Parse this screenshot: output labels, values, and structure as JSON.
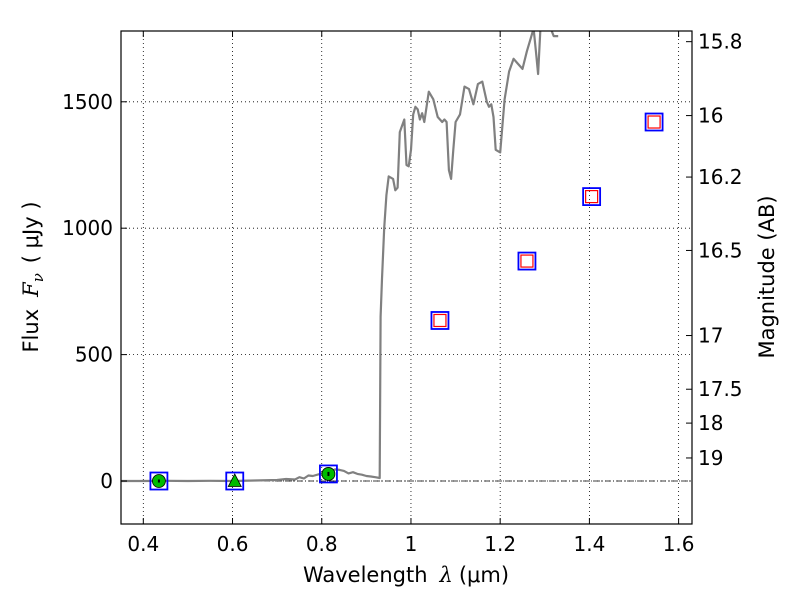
{
  "chart_data": {
    "type": "scatter",
    "xlabel": "Wavelength",
    "xlabel_symbol": "λ",
    "xlabel_unit": "(μm)",
    "ylabel": "Flux",
    "ylabel_symbol": "F",
    "ylabel_subscript": "ν",
    "ylabel_unit": "( μJy )",
    "y2label": "Magnitude (AB)",
    "xlim": [
      0.35,
      1.63
    ],
    "ylim": [
      -170,
      1780
    ],
    "xticks": [
      0.4,
      0.6,
      0.8,
      1.0,
      1.2,
      1.4,
      1.6
    ],
    "xtick_labels": [
      "0.4",
      "0.6",
      "0.8",
      "1",
      "1.2",
      "1.4",
      "1.6"
    ],
    "yticks": [
      0,
      500,
      1000,
      1500
    ],
    "ytick_labels": [
      "0",
      "500",
      "1000",
      "1500"
    ],
    "mag_ticks": [
      15.8,
      16.0,
      16.2,
      16.5,
      17.0,
      17.5,
      18.0,
      19.0
    ],
    "mag_tick_labels": [
      "15.8",
      "16",
      "16.2",
      "16.5",
      "17",
      "17.5",
      "18",
      "19"
    ],
    "grid": true,
    "colors": {
      "model": "#808080",
      "model_box": "#0000ff",
      "upper_limit_box": "#ff0000",
      "detection": "#00bb00"
    },
    "series": [
      {
        "name": "model_spectrum",
        "style": "line",
        "x": [
          0.35,
          0.4,
          0.45,
          0.5,
          0.55,
          0.6,
          0.65,
          0.7,
          0.72,
          0.74,
          0.75,
          0.76,
          0.77,
          0.78,
          0.8,
          0.82,
          0.83,
          0.84,
          0.85,
          0.86,
          0.87,
          0.88,
          0.89,
          0.9,
          0.91,
          0.92,
          0.93,
          0.932,
          0.935,
          0.94,
          0.945,
          0.95,
          0.96,
          0.965,
          0.97,
          0.975,
          0.985,
          0.99,
          0.995,
          1.0,
          1.005,
          1.01,
          1.015,
          1.02,
          1.025,
          1.03,
          1.04,
          1.05,
          1.06,
          1.07,
          1.075,
          1.08,
          1.085,
          1.09,
          1.095,
          1.1,
          1.11,
          1.12,
          1.13,
          1.14,
          1.15,
          1.16,
          1.17,
          1.175,
          1.18,
          1.185,
          1.19,
          1.2,
          1.21,
          1.22,
          1.23,
          1.24,
          1.25,
          1.26,
          1.27,
          1.275,
          1.28,
          1.285,
          1.29,
          1.3,
          1.32,
          1.33
        ],
        "y": [
          0,
          0,
          1,
          0,
          1,
          0,
          2,
          4,
          8,
          6,
          15,
          10,
          22,
          20,
          30,
          38,
          46,
          44,
          40,
          30,
          35,
          28,
          25,
          20,
          18,
          15,
          12,
          650,
          800,
          1000,
          1130,
          1205,
          1195,
          1150,
          1160,
          1380,
          1430,
          1250,
          1245,
          1310,
          1450,
          1480,
          1470,
          1430,
          1455,
          1420,
          1540,
          1510,
          1440,
          1420,
          1430,
          1420,
          1230,
          1195,
          1310,
          1420,
          1450,
          1560,
          1550,
          1490,
          1570,
          1580,
          1500,
          1480,
          1490,
          1440,
          1310,
          1300,
          1510,
          1620,
          1670,
          1650,
          1630,
          1700,
          1760,
          1790,
          1700,
          1610,
          1780,
          1850,
          1760,
          1760
        ]
      },
      {
        "name": "model_photometry",
        "style": "open_square",
        "color": "#0000ff",
        "x": [
          0.435,
          0.605,
          0.815,
          1.065,
          1.26,
          1.405,
          1.545
        ],
        "y": [
          0,
          0,
          28,
          635,
          870,
          1125,
          1420
        ]
      },
      {
        "name": "upper_limits",
        "style": "open_square",
        "color": "#ff0000",
        "x": [
          1.065,
          1.26,
          1.405,
          1.545
        ],
        "y": [
          635,
          870,
          1125,
          1420
        ]
      },
      {
        "name": "detections_circle",
        "style": "filled_circle",
        "color": "#00bb00",
        "x": [
          0.435,
          0.815
        ],
        "y": [
          0,
          28
        ],
        "yerr": [
          6,
          8
        ]
      },
      {
        "name": "detections_triangle",
        "style": "filled_triangle",
        "color": "#00bb00",
        "x": [
          0.605
        ],
        "y": [
          0
        ]
      }
    ]
  }
}
